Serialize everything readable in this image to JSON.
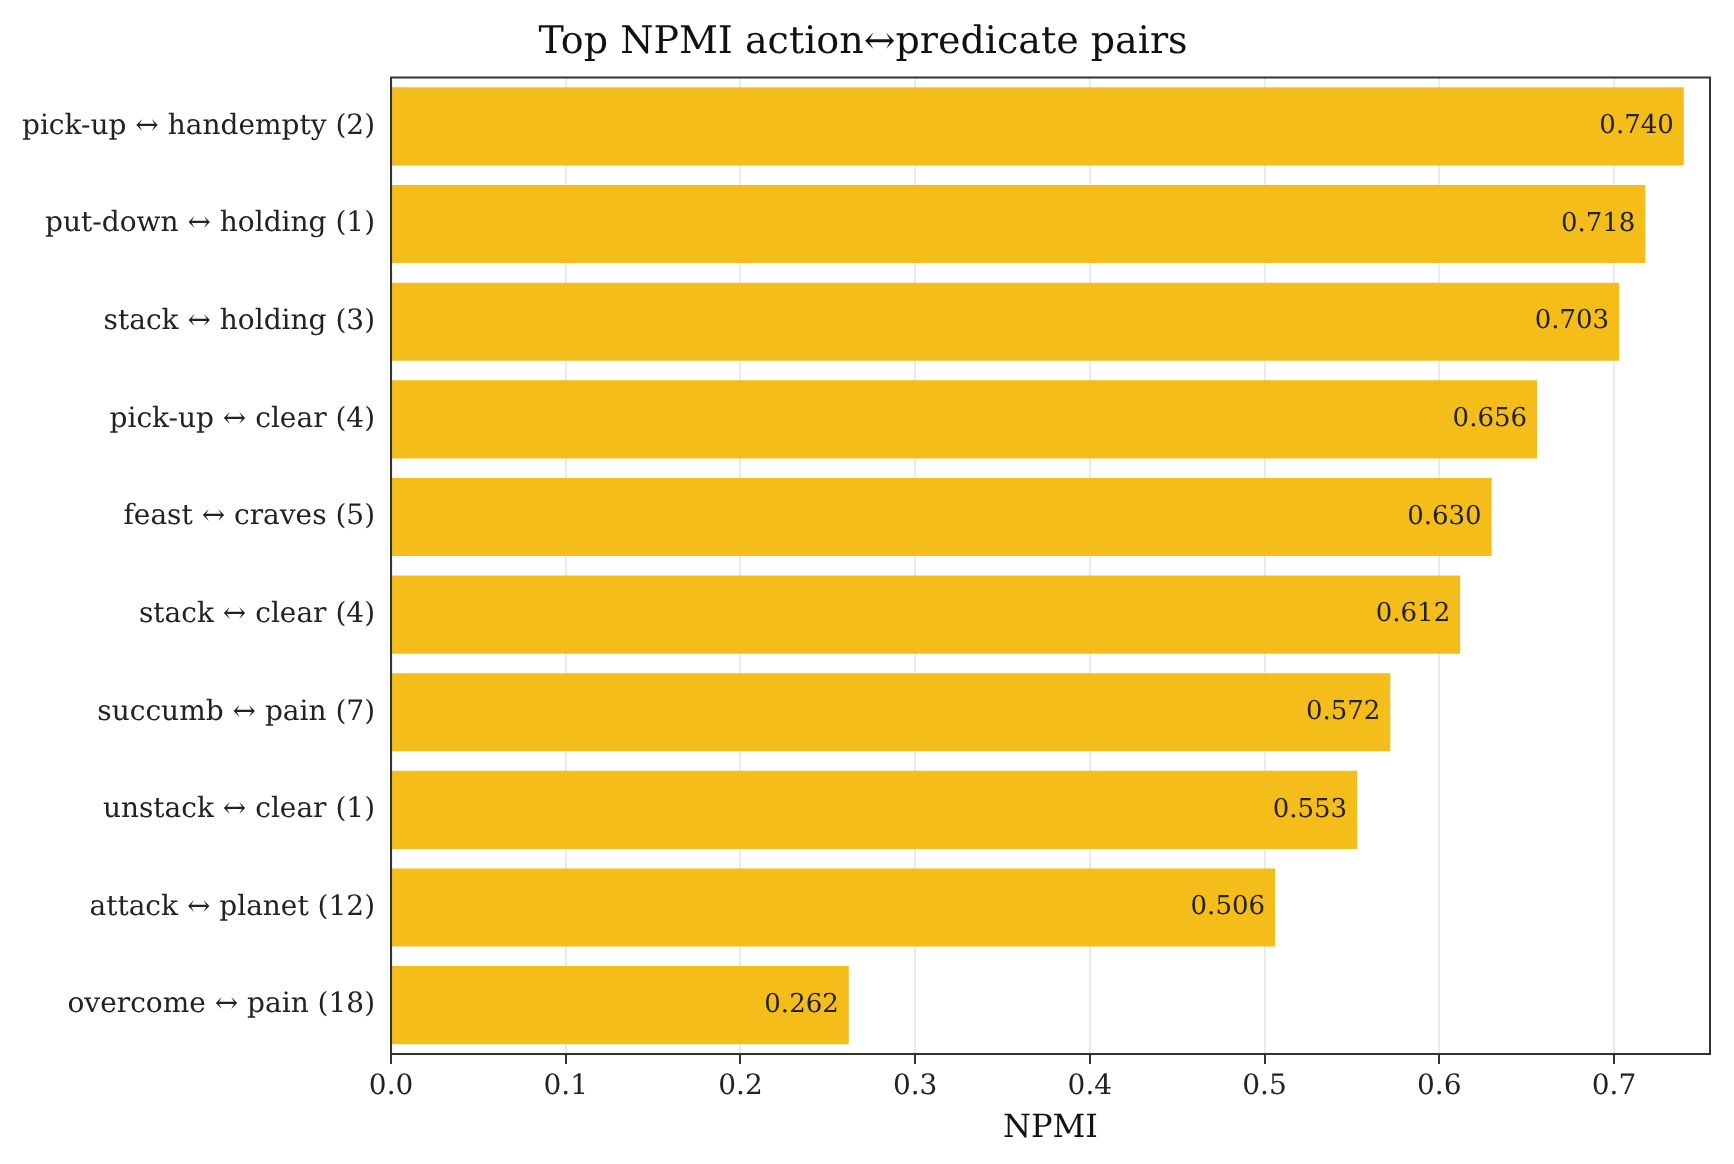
{
  "chart_data": {
    "type": "bar",
    "orientation": "horizontal",
    "title": "Top NPMI action↔predicate pairs",
    "xlabel": "NPMI",
    "categories": [
      "pick-up ↔ handempty (2)",
      "put-down ↔ holding (1)",
      "stack ↔ holding (3)",
      "pick-up ↔ clear (4)",
      "feast ↔ craves (5)",
      "stack ↔ clear (4)",
      "succumb ↔ pain (7)",
      "unstack ↔ clear (1)",
      "attack ↔ planet (12)",
      "overcome ↔ pain (18)"
    ],
    "values": [
      0.74,
      0.718,
      0.703,
      0.656,
      0.63,
      0.612,
      0.572,
      0.553,
      0.506,
      0.262
    ],
    "value_labels": [
      "0.740",
      "0.718",
      "0.703",
      "0.656",
      "0.630",
      "0.612",
      "0.572",
      "0.553",
      "0.506",
      "0.262"
    ],
    "color": "#f5bd1a",
    "grid": "x",
    "legend": false,
    "xlim": [
      0,
      0.755
    ],
    "xticks": [
      {
        "value": 0,
        "label": "0.0"
      },
      {
        "value": 0.1,
        "label": "0.1"
      },
      {
        "value": 0.2,
        "label": "0.2"
      },
      {
        "value": 0.3,
        "label": "0.3"
      },
      {
        "value": 0.4,
        "label": "0.4"
      },
      {
        "value": 0.5,
        "label": "0.5"
      },
      {
        "value": 0.6,
        "label": "0.6"
      },
      {
        "value": 0.7,
        "label": "0.7"
      }
    ]
  }
}
